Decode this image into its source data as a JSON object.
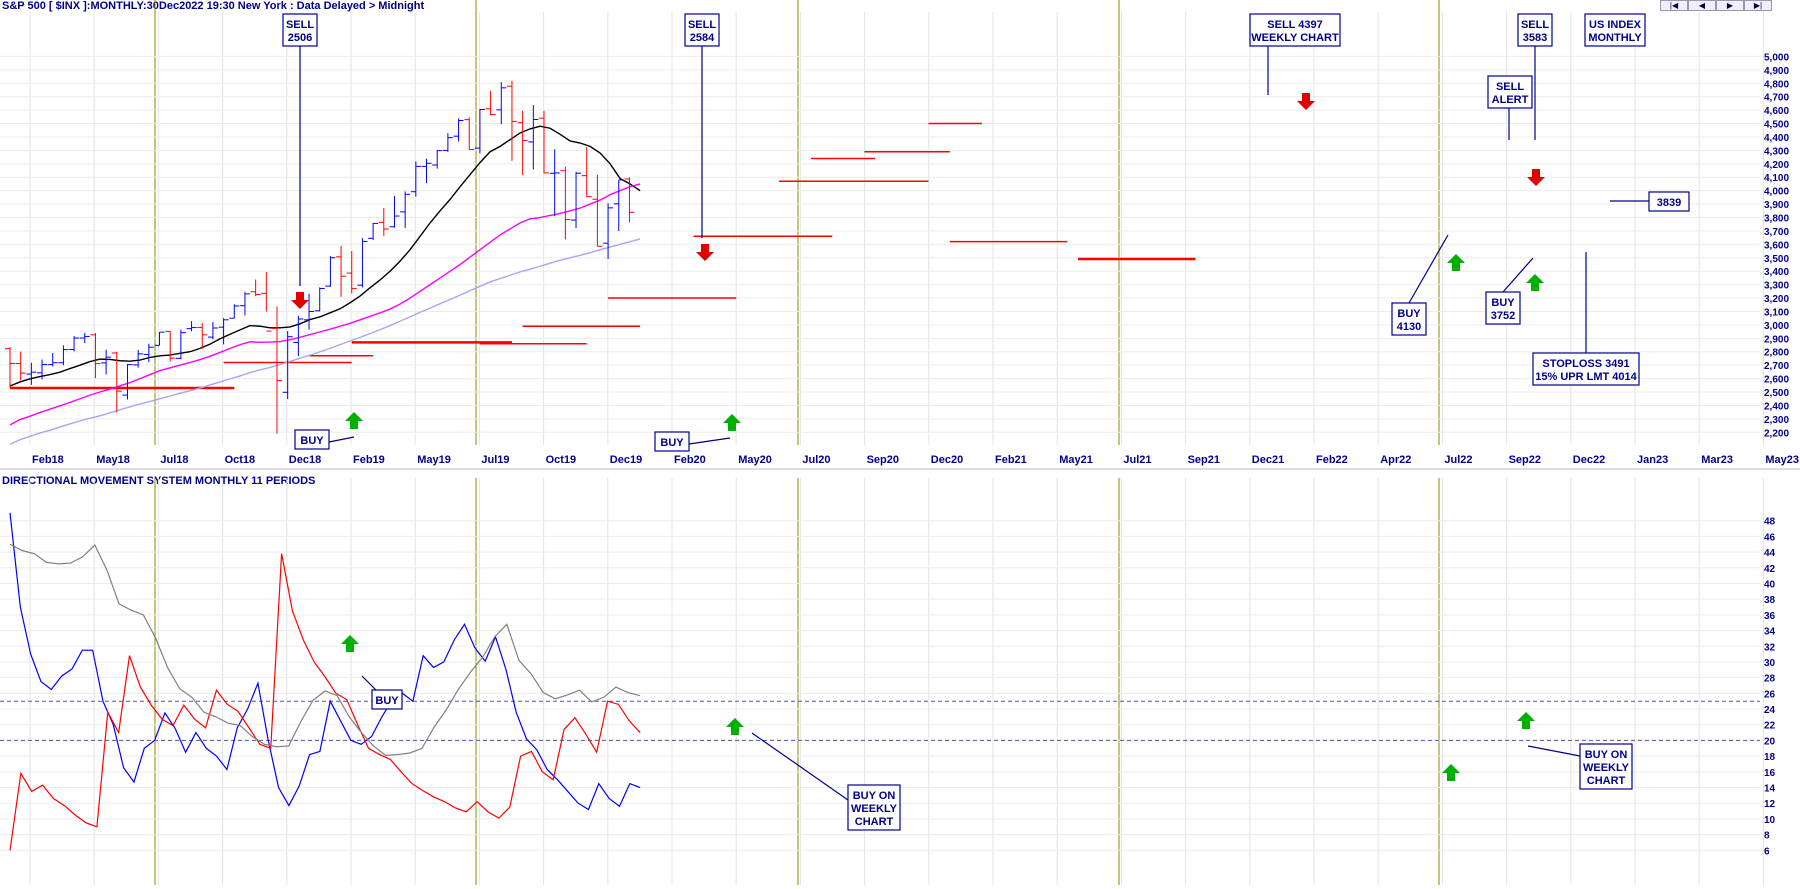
{
  "header": {
    "title": "S&P 500 [ $INX ]:MONTHLY:30Dec2022 19:30 New York : Data Delayed > Midnight",
    "lower_title": "DIRECTIONAL MOVEMENT SYSTEM MONTHLY 11 PERIODS"
  },
  "nav": {
    "first": "|◀",
    "prev": "◀",
    "next": "▶",
    "last": "▶|"
  },
  "chart_data": [
    {
      "type": "ohlc",
      "title": "S&P 500 [ $INX ]:MONTHLY:30Dec2022 19:30 New York : Data Delayed > Midnight",
      "ylim": [
        2150,
        5100
      ],
      "y_ticks": [
        2200,
        2300,
        2400,
        2500,
        2600,
        2700,
        2800,
        2900,
        3000,
        3100,
        3200,
        3300,
        3400,
        3500,
        3600,
        3700,
        3800,
        3900,
        4000,
        4100,
        4200,
        4300,
        4400,
        4500,
        4600,
        4700,
        4800,
        4900,
        5000
      ],
      "y_tick_labels": [
        "2,200",
        "2,300",
        "2,400",
        "2,500",
        "2,600",
        "2,700",
        "2,800",
        "2,900",
        "3,000",
        "3,100",
        "3,200",
        "3,300",
        "3,400",
        "3,500",
        "3,600",
        "3,700",
        "3,800",
        "3,900",
        "4,000",
        "4,100",
        "4,200",
        "4,300",
        "4,400",
        "4,500",
        "4,600",
        "4,700",
        "4,800",
        "4,900",
        "5,000"
      ],
      "x_labels": [
        "Feb18",
        "May18",
        "Jul18",
        "Oct18",
        "Dec18",
        "Feb19",
        "May19",
        "Jul19",
        "Oct19",
        "Dec19",
        "Feb20",
        "May20",
        "Jul20",
        "Sep20",
        "Dec20",
        "Feb21",
        "May21",
        "Jul21",
        "Sep21",
        "Dec21",
        "Feb22",
        "Apr22",
        "Jul22",
        "Sep22",
        "Dec22",
        "Jan23",
        "Mar23",
        "May23"
      ],
      "bars": [
        [
          2823,
          2835,
          2533,
          2713
        ],
        [
          2713,
          2801,
          2585,
          2641
        ],
        [
          2634,
          2718,
          2553,
          2648
        ],
        [
          2643,
          2742,
          2594,
          2705
        ],
        [
          2704,
          2791,
          2691,
          2718
        ],
        [
          2718,
          2848,
          2699,
          2816
        ],
        [
          2817,
          2917,
          2803,
          2902
        ],
        [
          2902,
          2940,
          2864,
          2914
        ],
        [
          2926,
          2940,
          2603,
          2712
        ],
        [
          2717,
          2815,
          2631,
          2760
        ],
        [
          2791,
          2800,
          2347,
          2507
        ],
        [
          2477,
          2708,
          2444,
          2704
        ],
        [
          2702,
          2813,
          2681,
          2784
        ],
        [
          2780,
          2860,
          2723,
          2834
        ],
        [
          2848,
          2947,
          2848,
          2946
        ],
        [
          2952,
          2954,
          2728,
          2752
        ],
        [
          2751,
          2964,
          2745,
          2942
        ],
        [
          2972,
          3028,
          2953,
          2980
        ],
        [
          2981,
          3013,
          2822,
          2926
        ],
        [
          2909,
          3021,
          2892,
          2977
        ],
        [
          2983,
          3050,
          2855,
          3038
        ],
        [
          3050,
          3154,
          3050,
          3141
        ],
        [
          3143,
          3247,
          3070,
          3231
        ],
        [
          3247,
          3338,
          3214,
          3226
        ],
        [
          3235,
          3394,
          3100,
          2954
        ],
        [
          2974,
          3136,
          2191,
          2585
        ],
        [
          2498,
          2954,
          2447,
          2912
        ],
        [
          2869,
          3068,
          2767,
          3044
        ],
        [
          3038,
          3233,
          2965,
          3100
        ],
        [
          3105,
          3280,
          3101,
          3271
        ],
        [
          3289,
          3514,
          3284,
          3500
        ],
        [
          3507,
          3588,
          3209,
          3363
        ],
        [
          3386,
          3550,
          3234,
          3270
        ],
        [
          3296,
          3646,
          3280,
          3622
        ],
        [
          3645,
          3760,
          3633,
          3756
        ],
        [
          3764,
          3870,
          3663,
          3714
        ],
        [
          3731,
          3960,
          3724,
          3811
        ],
        [
          3842,
          3995,
          3723,
          3973
        ],
        [
          3992,
          4218,
          3955,
          4181
        ],
        [
          4181,
          4238,
          4056,
          4204
        ],
        [
          4191,
          4302,
          4164,
          4298
        ],
        [
          4300,
          4429,
          4289,
          4395
        ],
        [
          4406,
          4538,
          4367,
          4523
        ],
        [
          4529,
          4546,
          4305,
          4307
        ],
        [
          4317,
          4608,
          4279,
          4605
        ],
        [
          4610,
          4744,
          4560,
          4567
        ],
        [
          4602,
          4808,
          4495,
          4766
        ],
        [
          4778,
          4819,
          4223,
          4516
        ],
        [
          4506,
          4595,
          4115,
          4374
        ],
        [
          4363,
          4637,
          4158,
          4530
        ],
        [
          4540,
          4594,
          4130,
          4132
        ],
        [
          4130,
          4308,
          3810,
          4132
        ],
        [
          4149,
          4178,
          3637,
          3785
        ],
        [
          3781,
          4140,
          3721,
          4130
        ],
        [
          4112,
          4325,
          3954,
          3955
        ],
        [
          3936,
          4119,
          3585,
          3586
        ],
        [
          3609,
          3906,
          3491,
          3872
        ],
        [
          3902,
          4080,
          3699,
          4080
        ],
        [
          4087,
          4100,
          3764,
          3839
        ]
      ],
      "series": [
        {
          "name": "",
          "color": "#000000",
          "values": [
            2545,
            2575,
            2598,
            2615,
            2630,
            2648,
            2675,
            2700,
            2727,
            2745,
            2743,
            2733,
            2730,
            2738,
            2758,
            2770,
            2775,
            2788,
            2800,
            2825,
            2857,
            2897,
            2930,
            2963,
            2995,
            2990,
            2978,
            2978,
            2985,
            3008,
            3040,
            3060,
            3090,
            3120,
            3165,
            3215,
            3277,
            3335,
            3400,
            3475,
            3560,
            3660,
            3760,
            3850,
            3935,
            4030,
            4120,
            4210,
            4290,
            4330,
            4380,
            4430,
            4460,
            4480,
            4465,
            4420,
            4370,
            4355,
            4330,
            4280,
            4200,
            4090,
            4050,
            4000
          ]
        },
        {
          "name": "",
          "color": "#ff00ff",
          "values": [
            2255,
            2295,
            2320,
            2348,
            2372,
            2397,
            2423,
            2450,
            2477,
            2500,
            2522,
            2546,
            2570,
            2600,
            2630,
            2660,
            2680,
            2700,
            2720,
            2742,
            2766,
            2795,
            2825,
            2853,
            2875,
            2870,
            2872,
            2876,
            2890,
            2908,
            2928,
            2948,
            2968,
            2990,
            3012,
            3038,
            3064,
            3090,
            3118,
            3155,
            3200,
            3250,
            3300,
            3350,
            3400,
            3450,
            3505,
            3560,
            3615,
            3670,
            3715,
            3760,
            3790,
            3800,
            3815,
            3830,
            3850,
            3870,
            3900,
            3930,
            3970,
            4000,
            4030,
            4050
          ]
        },
        {
          "name": "",
          "color": "#a6a6f2",
          "values": [
            2110,
            2145,
            2170,
            2195,
            2215,
            2240,
            2262,
            2285,
            2305,
            2323,
            2345,
            2368,
            2390,
            2410,
            2430,
            2450,
            2470,
            2490,
            2510,
            2530,
            2553,
            2575,
            2598,
            2620,
            2645,
            2665,
            2683,
            2705,
            2728,
            2752,
            2775,
            2800,
            2825,
            2853,
            2880,
            2907,
            2935,
            2965,
            2995,
            3028,
            3060,
            3093,
            3125,
            3158,
            3190,
            3222,
            3255,
            3288,
            3320,
            3345,
            3370,
            3395,
            3415,
            3437,
            3460,
            3482,
            3500,
            3518,
            3538,
            3560,
            3580,
            3600,
            3620,
            3640
          ]
        }
      ],
      "levels": [
        {
          "value": 2530,
          "from": 0,
          "to": 21
        },
        {
          "value": 2720,
          "from": 20,
          "to": 32
        },
        {
          "value": 2770,
          "from": 28,
          "to": 34
        },
        {
          "value": 2870,
          "from": 32,
          "to": 47
        },
        {
          "value": 2860,
          "from": 44,
          "to": 54
        },
        {
          "value": 2990,
          "from": 48,
          "to": 59
        },
        {
          "value": 3200,
          "from": 56,
          "to": 68
        },
        {
          "value": 3660,
          "from": 64,
          "to": 77
        },
        {
          "value": 4070,
          "from": 72,
          "to": 86
        },
        {
          "value": 4240,
          "from": 75,
          "to": 81
        },
        {
          "value": 4290,
          "from": 80,
          "to": 88
        },
        {
          "value": 4500,
          "from": 86,
          "to": 91
        },
        {
          "value": 3620,
          "from": 88,
          "to": 99
        },
        {
          "value": 3491,
          "from": 100,
          "to": 111
        }
      ],
      "annotations": [
        {
          "text": [
            "SELL",
            "2506"
          ],
          "bar": 19,
          "top": 2506
        },
        {
          "text": [
            "SELL",
            "2584"
          ],
          "bar": 46,
          "top": 2584
        },
        {
          "text": [
            "SELL 4397",
            "WEEKLY CHART"
          ],
          "bar": 80,
          "top": 4397
        },
        {
          "text": [
            "SELL",
            "3583"
          ],
          "bar": 99,
          "top": 3583
        },
        {
          "text": [
            "US INDEX",
            "MONTHLY"
          ],
          "bar": 103
        },
        {
          "text": [
            "SELL",
            "ALERT"
          ],
          "bar": 96
        },
        {
          "text": [
            "3839"
          ],
          "bar": 110,
          "value": 3839
        },
        {
          "text": [
            "BUY",
            "4130"
          ],
          "bar": 94,
          "value": 4130
        },
        {
          "text": [
            "BUY",
            "3752"
          ],
          "bar": 97,
          "value": 3752
        },
        {
          "text": [
            "STOPLOSS 3491",
            "15% UPR LMT 4014"
          ],
          "bar": 103,
          "value": 3491
        },
        {
          "text": [
            "BUY"
          ],
          "bar": 20
        },
        {
          "text": [
            "BUY"
          ],
          "bar": 45
        }
      ]
    },
    {
      "type": "line",
      "title": "DIRECTIONAL MOVEMENT SYSTEM MONTHLY 11 PERIODS",
      "ylim": [
        4,
        50
      ],
      "y_ticks": [
        6,
        8,
        10,
        12,
        14,
        16,
        18,
        20,
        22,
        24,
        26,
        28,
        30,
        32,
        34,
        36,
        38,
        40,
        42,
        44,
        46,
        48
      ],
      "reference_lines": [
        25,
        20
      ],
      "series": [
        {
          "name": "",
          "color": "#0000ff",
          "values": [
            49,
            37,
            31,
            27.5,
            26.5,
            28.2,
            29.1,
            31.5,
            31.5,
            25,
            22,
            16.5,
            14.7,
            19,
            20,
            23.5,
            21.5,
            18.5,
            21,
            19,
            18,
            16.3,
            21.6,
            24,
            27.3,
            20,
            14,
            11.7,
            14.2,
            18.2,
            18.6,
            25,
            22.5,
            20,
            19.5,
            20.5,
            23,
            25.2,
            26,
            25,
            30.8,
            29.3,
            30,
            32.8,
            34.8,
            31.8,
            30.1,
            33.2,
            29.1,
            23.6,
            20.2,
            18.8,
            16.3,
            15,
            13.5,
            12,
            11.2,
            14.5,
            12.6,
            11.6,
            14.5,
            14
          ]
        },
        {
          "name": "",
          "color": "#ff0000",
          "values": [
            6,
            15.8,
            13.5,
            14.3,
            12.6,
            11.7,
            10.5,
            9.5,
            9,
            23.6,
            21,
            30.8,
            26.8,
            24.5,
            22.7,
            21.9,
            24.5,
            22.7,
            21.6,
            26.4,
            24.6,
            23.7,
            21.6,
            19.5,
            19,
            43.8,
            36.5,
            32.8,
            30,
            28.1,
            26,
            25.2,
            22,
            19,
            18.2,
            17.6,
            16,
            14.5,
            13.6,
            12.8,
            12.2,
            11.4,
            10.9,
            12.2,
            10.9,
            10.1,
            11.5,
            18,
            18.6,
            16,
            15,
            21.4,
            22.9,
            20.8,
            18.5,
            25,
            24.6,
            22.5,
            21
          ]
        },
        {
          "name": "",
          "color": "#808080",
          "values": [
            45,
            44.2,
            43.8,
            42.7,
            42.5,
            42.6,
            43.4,
            44.9,
            41.7,
            37.4,
            36.6,
            36,
            33.1,
            29.3,
            26.6,
            25.5,
            23.6,
            23,
            22.2,
            21.9,
            20.5,
            19.5,
            19.2,
            19.3,
            22.4,
            25.1,
            26.3,
            25.7,
            23,
            21,
            19.3,
            18.1,
            18.2,
            18.4,
            19,
            21.7,
            23.9,
            26.5,
            28.7,
            30.6,
            33.2,
            34.8,
            30.2,
            28.5,
            26.1,
            25.3,
            25.8,
            26.4,
            24.9,
            25.5,
            26.8,
            26.1,
            25.7
          ]
        }
      ],
      "annotations": [
        {
          "text": [
            "BUY"
          ],
          "bar": 22
        },
        {
          "text": [
            "BUY ON",
            "WEEKLY",
            "CHART"
          ],
          "bar": 57
        },
        {
          "text": [
            "BUY ON",
            "WEEKLY",
            "CHART"
          ],
          "bar": 103
        }
      ]
    }
  ]
}
